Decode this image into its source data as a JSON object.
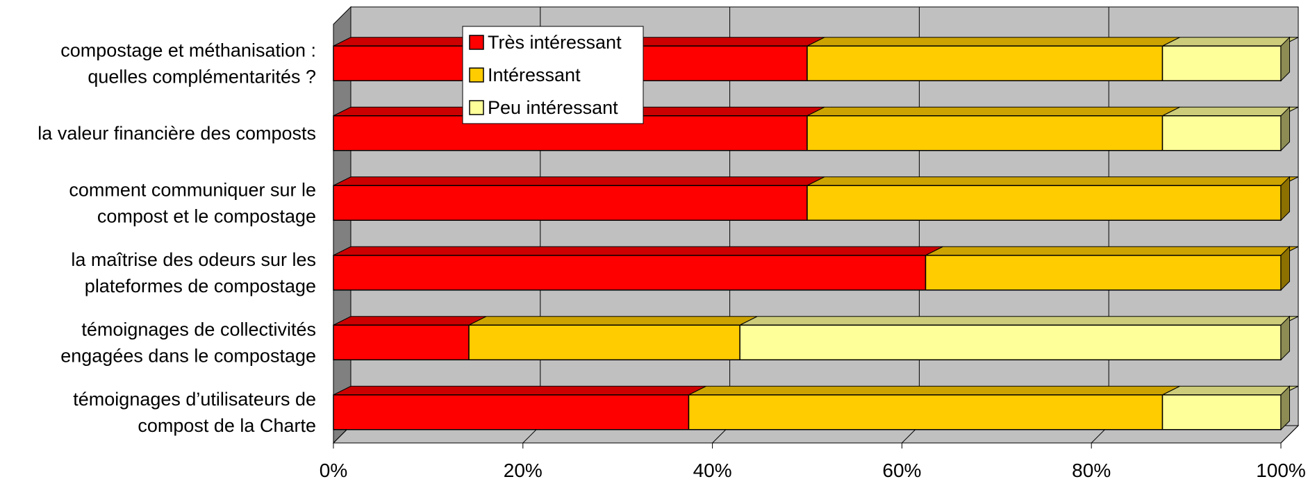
{
  "chart_data": {
    "type": "bar",
    "orientation": "horizontal",
    "stacked": "percent",
    "categories": [
      [
        "compostage et méthanisation :",
        "quelles complémentarités ?"
      ],
      [
        "la valeur financière des composts"
      ],
      [
        "comment communiquer sur le",
        "compost et le compostage"
      ],
      [
        "la maîtrise des odeurs sur les",
        "plateformes de compostage"
      ],
      [
        "témoignages de collectivités",
        "engagées dans le compostage"
      ],
      [
        "témoignages d’utilisateurs de",
        "compost de la Charte"
      ]
    ],
    "series": [
      {
        "name": "Très intéressant",
        "color": "#ff0000",
        "values": [
          50,
          50,
          50,
          62.5,
          14.3,
          37.5
        ]
      },
      {
        "name": "Intéressant",
        "color": "#ffcc00",
        "values": [
          37.5,
          37.5,
          50,
          37.5,
          28.6,
          50
        ]
      },
      {
        "name": "Peu intéressant",
        "color": "#ffff99",
        "values": [
          12.5,
          12.5,
          0,
          0,
          57.1,
          12.5
        ]
      }
    ],
    "x_ticks": [
      "0%",
      "20%",
      "40%",
      "60%",
      "80%",
      "100%"
    ],
    "xlim": [
      0,
      100
    ],
    "grid": true,
    "legend": "top-left inside plot",
    "title": "",
    "xlabel": "",
    "ylabel": ""
  }
}
